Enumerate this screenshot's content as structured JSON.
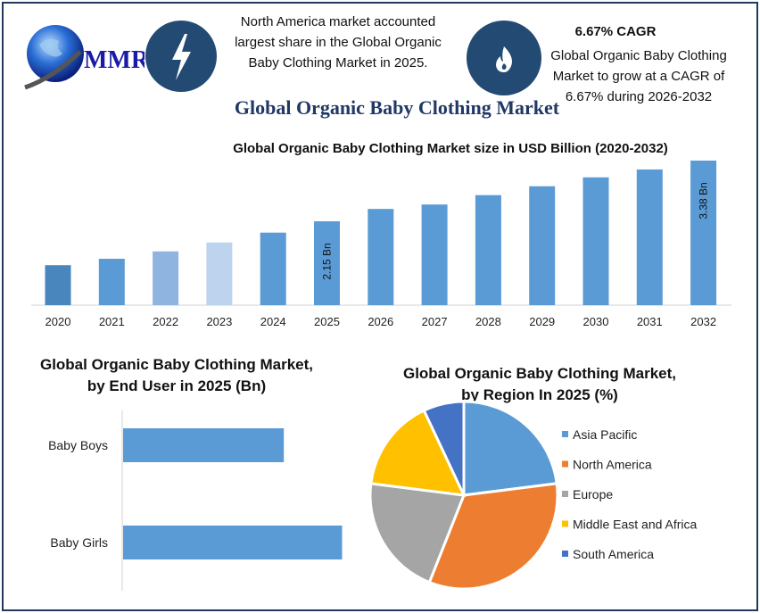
{
  "header": {
    "logo_text": "MMR",
    "highlight_1": "North America market accounted largest share in the Global Organic Baby Clothing Market in 2025.",
    "cagr_title": "6.67% CAGR",
    "highlight_2": "Global Organic Baby Clothing Market to grow at a CAGR of 6.67% during 2026-2032",
    "main_title": "Global Organic Baby Clothing Market",
    "icons": [
      "lightning-icon",
      "flame-icon",
      "globe-logo"
    ],
    "icon_circle_color": "#234a73"
  },
  "chart_data": [
    {
      "type": "bar",
      "title": "Global Organic Baby Clothing Market size in USD Billion (2020-2032)",
      "categories": [
        "2020",
        "2021",
        "2022",
        "2023",
        "2024",
        "2025",
        "2026",
        "2027",
        "2028",
        "2029",
        "2030",
        "2031",
        "2032"
      ],
      "values": [
        1.26,
        1.39,
        1.54,
        1.72,
        1.92,
        2.15,
        2.4,
        2.49,
        2.68,
        2.86,
        3.04,
        3.2,
        3.38
      ],
      "data_labels": {
        "2025": "2.15 Bn",
        "2032": "3.38 Bn"
      },
      "colors": [
        "#4a86be",
        "#5b9bd5",
        "#8fb4e0",
        "#bdd3ee",
        "#5b9bd5",
        "#5b9bd5",
        "#5b9bd5",
        "#5b9bd5",
        "#5b9bd5",
        "#5b9bd5",
        "#5b9bd5",
        "#5b9bd5",
        "#5b9bd5"
      ],
      "xlabel": "",
      "ylabel": "",
      "grid": false
    },
    {
      "type": "bar",
      "orientation": "horizontal",
      "title": "Global Organic Baby Clothing Market, by End User in 2025 (Bn)",
      "title_lines": [
        "Global Organic Baby Clothing Market,",
        "by End User in 2025 (Bn)"
      ],
      "categories": [
        "Baby Boys",
        "Baby Girls"
      ],
      "values": [
        0.91,
        1.24
      ],
      "color": "#5b9bd5"
    },
    {
      "type": "pie",
      "title": "Global Organic Baby Clothing Market, by Region In 2025 (%)",
      "title_lines": [
        "Global Organic Baby Clothing Market,",
        "by Region In 2025 (%)"
      ],
      "categories": [
        "Asia Pacific",
        "North America",
        "Europe",
        "Middle East and Africa",
        "South America"
      ],
      "values": [
        23,
        33,
        21,
        16,
        7
      ],
      "colors": [
        "#5b9bd5",
        "#ed7d31",
        "#a5a5a5",
        "#ffc000",
        "#4472c4"
      ],
      "legend": "right"
    }
  ]
}
